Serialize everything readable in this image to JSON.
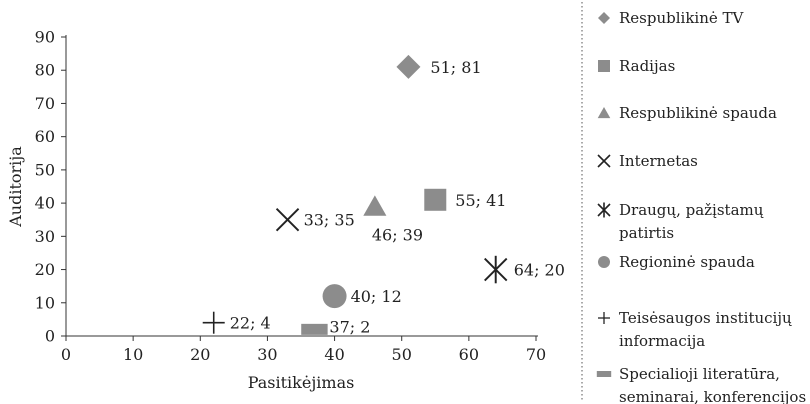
{
  "chart_data": {
    "type": "scatter",
    "xlabel": "Pasitikėjimas",
    "ylabel": "Auditorija",
    "xlim": [
      0,
      70
    ],
    "ylim": [
      0,
      90
    ],
    "xticks": [
      "0",
      "10",
      "20",
      "30",
      "40",
      "50",
      "60",
      "70"
    ],
    "yticks": [
      "0",
      "10",
      "20",
      "30",
      "40",
      "50",
      "60",
      "70",
      "80",
      "90"
    ],
    "grid": false,
    "legend_position": "right",
    "marker_color": "#8c8c8c",
    "series": [
      {
        "name": "Respublikinė TV",
        "marker": "diamond",
        "x": 51,
        "y": 81,
        "label": "51; 81"
      },
      {
        "name": "Radijas",
        "marker": "square",
        "x": 55,
        "y": 41,
        "label": "55; 41"
      },
      {
        "name": "Respublikinė spauda",
        "marker": "triangle",
        "x": 46,
        "y": 39,
        "label": "46; 39"
      },
      {
        "name": "Internetas",
        "marker": "x",
        "x": 33,
        "y": 35,
        "label": "33; 35"
      },
      {
        "name": "Draugų, pažįstamų patirtis",
        "name_lines": [
          "Draugų, pažįstamų",
          "patirtis"
        ],
        "marker": "asterisk",
        "x": 64,
        "y": 20,
        "label": "64; 20"
      },
      {
        "name": "Regioninė spauda",
        "marker": "circle",
        "x": 40,
        "y": 12,
        "label": "40; 12"
      },
      {
        "name": "Teisėsaugos institucijų informacija",
        "name_lines": [
          "Teisėsaugos institucijų",
          "informacija"
        ],
        "marker": "plus",
        "x": 22,
        "y": 4,
        "label": "22; 4"
      },
      {
        "name": "Specialioji literatūra, seminarai, konferencijos",
        "name_lines": [
          "Specialioji literatūra,",
          "seminarai, konferencijos"
        ],
        "marker": "bar",
        "x": 37,
        "y": 2,
        "label": "37; 2"
      }
    ]
  }
}
